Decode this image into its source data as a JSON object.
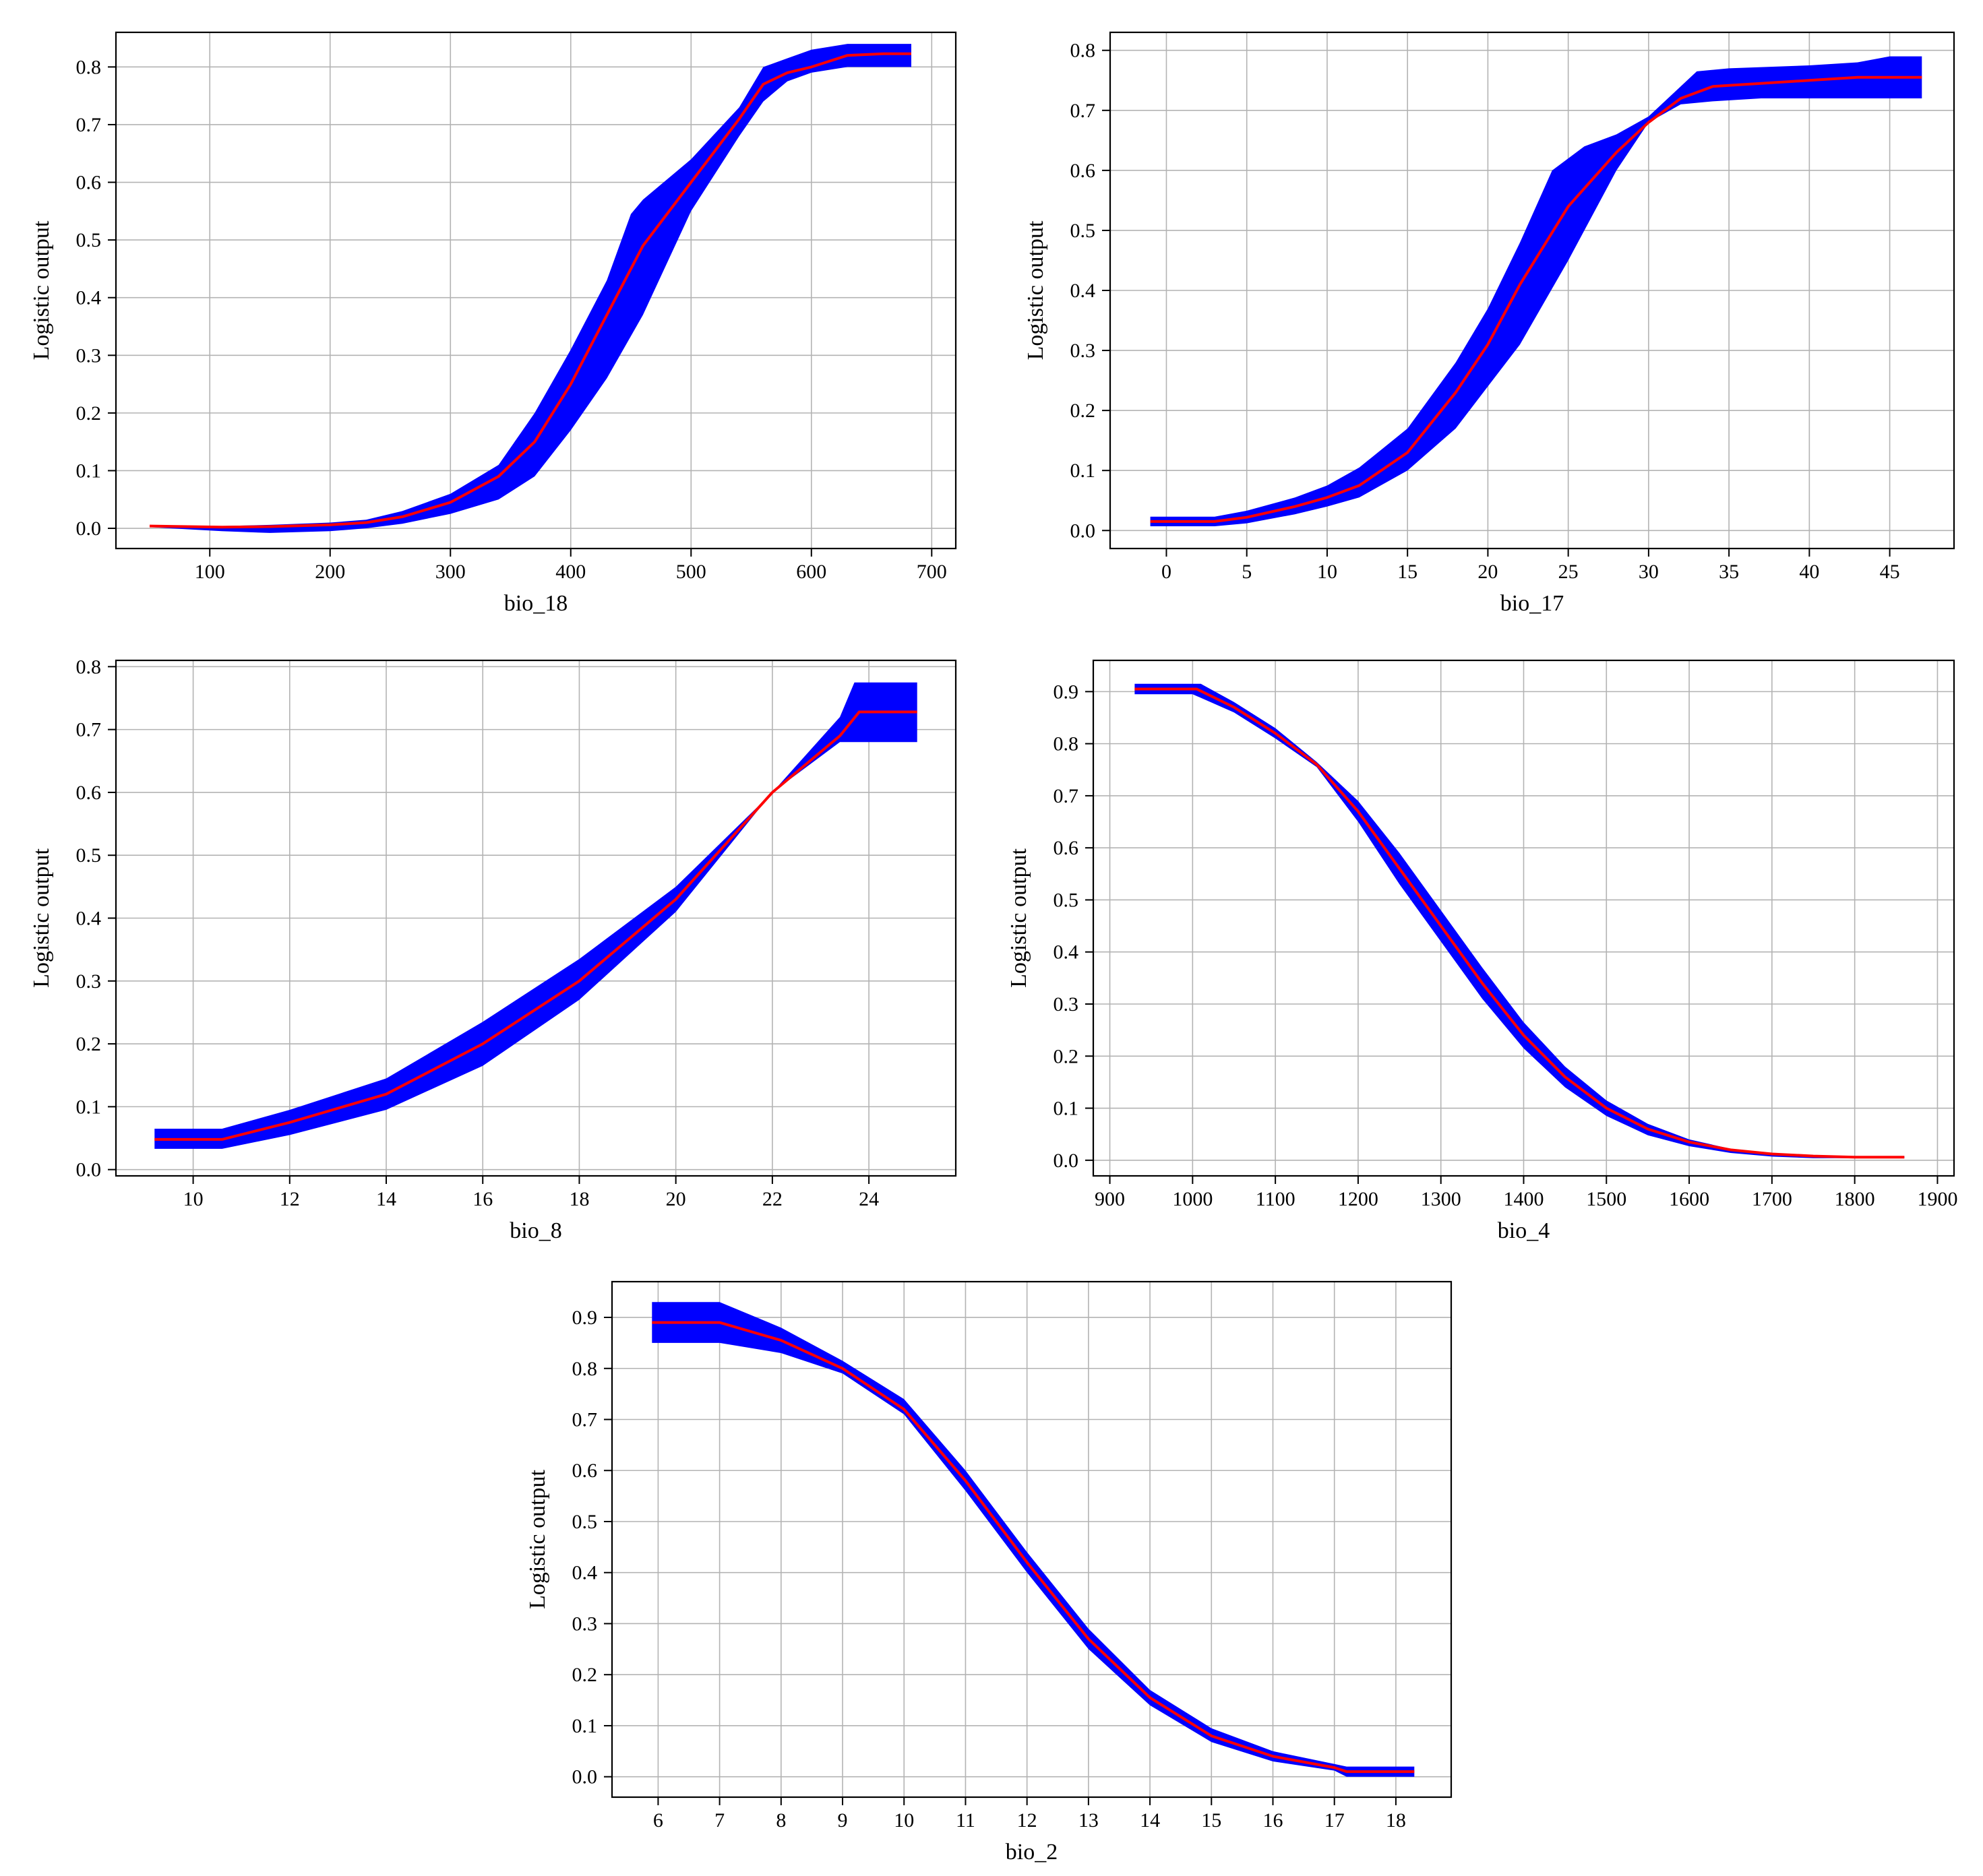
{
  "chart_data": [
    {
      "type": "area",
      "xlabel": "bio_18",
      "ylabel": "Logistic output",
      "xlim": [
        22,
        720
      ],
      "ylim": [
        -0.035,
        0.86
      ],
      "xticks": [
        100,
        200,
        300,
        400,
        500,
        600,
        700
      ],
      "yticks": [
        0.0,
        0.1,
        0.2,
        0.3,
        0.4,
        0.5,
        0.6,
        0.7,
        0.8
      ],
      "grid": true,
      "series": [
        {
          "role": "mean",
          "color": "#ff0000",
          "x": [
            50,
            110,
            150,
            200,
            230,
            260,
            300,
            340,
            370,
            400,
            430,
            460,
            500,
            540,
            560,
            580,
            600,
            630,
            660,
            683
          ],
          "y": [
            0.004,
            0.002,
            0.003,
            0.006,
            0.01,
            0.02,
            0.045,
            0.09,
            0.15,
            0.25,
            0.37,
            0.49,
            0.6,
            0.71,
            0.77,
            0.79,
            0.8,
            0.82,
            0.823,
            0.823
          ]
        },
        {
          "role": "band_upper",
          "color": "#0000ff",
          "x": [
            50,
            110,
            150,
            200,
            230,
            260,
            300,
            340,
            370,
            400,
            430,
            450,
            460,
            500,
            540,
            560,
            580,
            600,
            630,
            683
          ],
          "y": [
            0.005,
            0.004,
            0.006,
            0.01,
            0.015,
            0.03,
            0.06,
            0.11,
            0.2,
            0.31,
            0.43,
            0.545,
            0.57,
            0.64,
            0.73,
            0.8,
            0.815,
            0.83,
            0.84,
            0.84
          ]
        },
        {
          "role": "band_lower",
          "color": "#0000ff",
          "x": [
            50,
            110,
            150,
            200,
            230,
            260,
            300,
            340,
            370,
            400,
            430,
            460,
            500,
            540,
            560,
            580,
            600,
            630,
            683
          ],
          "y": [
            0.002,
            -0.005,
            -0.008,
            -0.005,
            0.0,
            0.008,
            0.025,
            0.05,
            0.09,
            0.17,
            0.26,
            0.37,
            0.55,
            0.68,
            0.74,
            0.775,
            0.79,
            0.8,
            0.8
          ]
        }
      ]
    },
    {
      "type": "area",
      "xlabel": "bio_17",
      "ylabel": "Logistic output",
      "xlim": [
        -3.5,
        49
      ],
      "ylim": [
        -0.03,
        0.83
      ],
      "xticks": [
        0,
        5,
        10,
        15,
        20,
        25,
        30,
        35,
        40,
        45
      ],
      "yticks": [
        0.0,
        0.1,
        0.2,
        0.3,
        0.4,
        0.5,
        0.6,
        0.7,
        0.8
      ],
      "grid": true,
      "series": [
        {
          "role": "mean",
          "color": "#ff0000",
          "x": [
            -1,
            3,
            5,
            8,
            10,
            12,
            15,
            18,
            20,
            22,
            25,
            28,
            30,
            32,
            34,
            37,
            40,
            43,
            47
          ],
          "y": [
            0.015,
            0.015,
            0.022,
            0.04,
            0.055,
            0.075,
            0.13,
            0.23,
            0.31,
            0.41,
            0.54,
            0.63,
            0.68,
            0.72,
            0.74,
            0.745,
            0.75,
            0.755,
            0.755
          ]
        },
        {
          "role": "band_upper",
          "color": "#0000ff",
          "x": [
            -1,
            3,
            5,
            8,
            10,
            12,
            15,
            18,
            20,
            22,
            24,
            26,
            28,
            30,
            33,
            35,
            40,
            43,
            45,
            47
          ],
          "y": [
            0.023,
            0.023,
            0.033,
            0.055,
            0.075,
            0.105,
            0.17,
            0.28,
            0.37,
            0.48,
            0.6,
            0.64,
            0.66,
            0.69,
            0.765,
            0.77,
            0.775,
            0.78,
            0.79,
            0.79
          ]
        },
        {
          "role": "band_lower",
          "color": "#0000ff",
          "x": [
            -1,
            3,
            5,
            8,
            10,
            12,
            15,
            18,
            20,
            22,
            25,
            28,
            30,
            32,
            34,
            37,
            40,
            47
          ],
          "y": [
            0.007,
            0.007,
            0.012,
            0.027,
            0.04,
            0.055,
            0.1,
            0.17,
            0.24,
            0.31,
            0.45,
            0.6,
            0.68,
            0.71,
            0.715,
            0.72,
            0.72,
            0.72
          ]
        }
      ]
    },
    {
      "type": "area",
      "xlabel": "bio_8",
      "ylabel": "Logistic output",
      "xlim": [
        8.4,
        25.8
      ],
      "ylim": [
        -0.01,
        0.81
      ],
      "xticks": [
        10,
        12,
        14,
        16,
        18,
        20,
        22,
        24
      ],
      "yticks": [
        0.0,
        0.1,
        0.2,
        0.3,
        0.4,
        0.5,
        0.6,
        0.7,
        0.8
      ],
      "grid": true,
      "series": [
        {
          "role": "mean",
          "color": "#ff0000",
          "x": [
            9.2,
            10.6,
            12,
            14,
            16,
            18,
            20,
            22,
            23.4,
            23.8,
            25
          ],
          "y": [
            0.048,
            0.048,
            0.075,
            0.12,
            0.2,
            0.3,
            0.43,
            0.6,
            0.69,
            0.728,
            0.728
          ]
        },
        {
          "role": "band_upper",
          "color": "#0000ff",
          "x": [
            9.2,
            10.6,
            12,
            14,
            16,
            18,
            20,
            22,
            23.4,
            23.7,
            25
          ],
          "y": [
            0.065,
            0.065,
            0.095,
            0.145,
            0.235,
            0.335,
            0.45,
            0.6,
            0.72,
            0.775,
            0.775
          ]
        },
        {
          "role": "band_lower",
          "color": "#0000ff",
          "x": [
            9.2,
            10.6,
            12,
            14,
            16,
            18,
            20,
            22,
            23.4,
            23.7,
            25
          ],
          "y": [
            0.033,
            0.033,
            0.055,
            0.095,
            0.165,
            0.27,
            0.41,
            0.6,
            0.68,
            0.68,
            0.68
          ]
        }
      ]
    },
    {
      "type": "area",
      "xlabel": "bio_4",
      "ylabel": "Logistic output",
      "xlim": [
        880,
        1920
      ],
      "ylim": [
        -0.03,
        0.96
      ],
      "xticks": [
        900,
        1000,
        1100,
        1200,
        1300,
        1400,
        1500,
        1600,
        1700,
        1800,
        1900
      ],
      "yticks": [
        0.0,
        0.1,
        0.2,
        0.3,
        0.4,
        0.5,
        0.6,
        0.7,
        0.8,
        0.9
      ],
      "grid": true,
      "series": [
        {
          "role": "mean",
          "color": "#ff0000",
          "x": [
            930,
            1005,
            1050,
            1100,
            1150,
            1200,
            1250,
            1300,
            1350,
            1400,
            1450,
            1500,
            1550,
            1600,
            1650,
            1700,
            1750,
            1800,
            1860
          ],
          "y": [
            0.905,
            0.905,
            0.87,
            0.82,
            0.76,
            0.67,
            0.56,
            0.45,
            0.34,
            0.24,
            0.16,
            0.1,
            0.06,
            0.035,
            0.02,
            0.012,
            0.008,
            0.006,
            0.006
          ]
        },
        {
          "role": "band_upper",
          "color": "#0000ff",
          "x": [
            930,
            1010,
            1050,
            1100,
            1150,
            1200,
            1250,
            1300,
            1350,
            1400,
            1450,
            1500,
            1550,
            1600,
            1650,
            1700,
            1750,
            1800,
            1860
          ],
          "y": [
            0.915,
            0.915,
            0.88,
            0.83,
            0.765,
            0.69,
            0.59,
            0.48,
            0.37,
            0.265,
            0.18,
            0.115,
            0.07,
            0.04,
            0.022,
            0.014,
            0.009,
            0.008,
            0.008
          ]
        },
        {
          "role": "band_lower",
          "color": "#0000ff",
          "x": [
            930,
            1000,
            1050,
            1100,
            1150,
            1200,
            1250,
            1300,
            1350,
            1400,
            1450,
            1500,
            1550,
            1600,
            1650,
            1700,
            1750,
            1800,
            1860
          ],
          "y": [
            0.895,
            0.895,
            0.86,
            0.81,
            0.755,
            0.65,
            0.53,
            0.42,
            0.31,
            0.215,
            0.14,
            0.085,
            0.048,
            0.027,
            0.014,
            0.007,
            0.004,
            0.004,
            0.004
          ]
        }
      ]
    },
    {
      "type": "area",
      "xlabel": "bio_2",
      "ylabel": "Logistic output",
      "xlim": [
        5.25,
        18.9
      ],
      "ylim": [
        -0.04,
        0.97
      ],
      "xticks": [
        6,
        7,
        8,
        9,
        10,
        11,
        12,
        13,
        14,
        15,
        16,
        17,
        18
      ],
      "yticks": [
        0.0,
        0.1,
        0.2,
        0.3,
        0.4,
        0.5,
        0.6,
        0.7,
        0.8,
        0.9
      ],
      "grid": true,
      "series": [
        {
          "role": "mean",
          "color": "#ff0000",
          "x": [
            5.9,
            7,
            8,
            9,
            10,
            11,
            12,
            13,
            14,
            15,
            16,
            17,
            17.2,
            18.3
          ],
          "y": [
            0.89,
            0.89,
            0.855,
            0.8,
            0.72,
            0.58,
            0.42,
            0.27,
            0.155,
            0.08,
            0.04,
            0.018,
            0.01,
            0.01
          ]
        },
        {
          "role": "band_upper",
          "color": "#0000ff",
          "x": [
            5.9,
            7,
            8,
            9,
            10,
            11,
            12,
            13,
            14,
            15,
            16,
            17,
            17.2,
            18.3
          ],
          "y": [
            0.93,
            0.93,
            0.88,
            0.815,
            0.74,
            0.6,
            0.44,
            0.29,
            0.17,
            0.095,
            0.05,
            0.025,
            0.02,
            0.02
          ]
        },
        {
          "role": "band_lower",
          "color": "#0000ff",
          "x": [
            5.9,
            7,
            8,
            9,
            10,
            11,
            12,
            13,
            14,
            15,
            16,
            17,
            17.2,
            18.3
          ],
          "y": [
            0.85,
            0.85,
            0.83,
            0.79,
            0.71,
            0.56,
            0.4,
            0.25,
            0.14,
            0.068,
            0.03,
            0.012,
            0.0,
            0.0
          ]
        }
      ]
    }
  ]
}
